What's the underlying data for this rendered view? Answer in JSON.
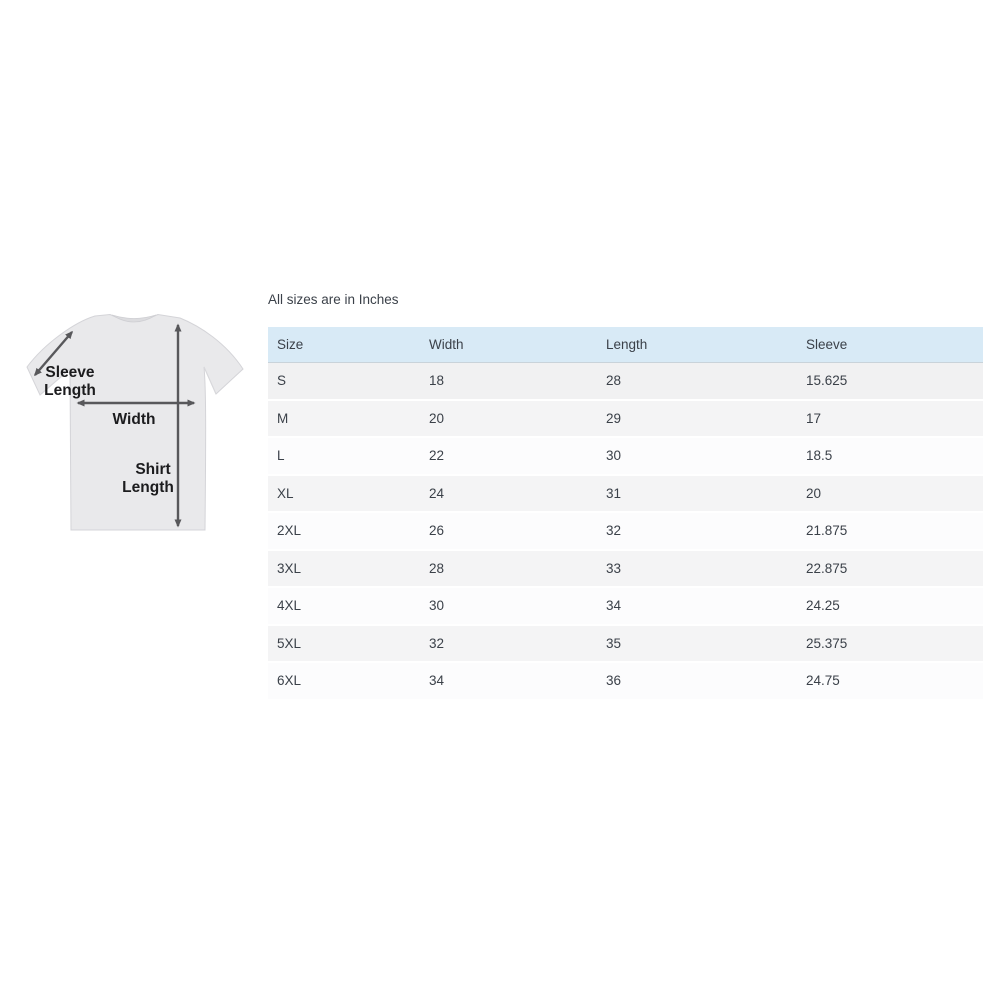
{
  "note": "All sizes are in Inches",
  "diagram": {
    "sleeve_label_line1": "Sleeve",
    "sleeve_label_line2": "Length",
    "width_label": "Width",
    "shirt_label_line1": "Shirt",
    "shirt_label_line2": "Length"
  },
  "table": {
    "columns": [
      "Size",
      "Width",
      "Length",
      "Sleeve"
    ],
    "rows": [
      {
        "size": "S",
        "width": "18",
        "length": "28",
        "sleeve": "15.625"
      },
      {
        "size": "M",
        "width": "20",
        "length": "29",
        "sleeve": "17"
      },
      {
        "size": "L",
        "width": "22",
        "length": "30",
        "sleeve": "18.5"
      },
      {
        "size": "XL",
        "width": "24",
        "length": "31",
        "sleeve": "20"
      },
      {
        "size": "2XL",
        "width": "26",
        "length": "32",
        "sleeve": "21.875"
      },
      {
        "size": "3XL",
        "width": "28",
        "length": "33",
        "sleeve": "22.875"
      },
      {
        "size": "4XL",
        "width": "30",
        "length": "34",
        "sleeve": "24.25"
      },
      {
        "size": "5XL",
        "width": "32",
        "length": "35",
        "sleeve": "25.375"
      },
      {
        "size": "6XL",
        "width": "34",
        "length": "36",
        "sleeve": "24.75"
      }
    ]
  },
  "colors": {
    "header_bg": "#d8eaf6",
    "row_gray": "#f4f4f5",
    "row_light": "#fcfcfd",
    "table_text": "#3b4149",
    "label_text": "#1c1c1e",
    "arrow_color": "#58585b",
    "shirt_fill": "#e9e9eb"
  }
}
